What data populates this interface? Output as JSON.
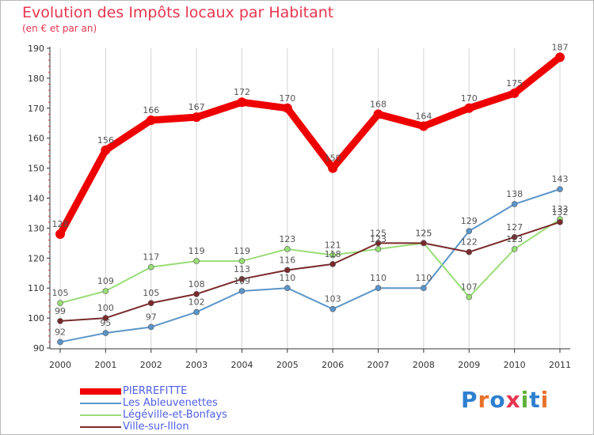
{
  "title": "Evolution des Impôts locaux par Habitant",
  "subtitle": "(en € et par an)",
  "logo": "Proxiti",
  "chart_data": {
    "type": "line",
    "x": [
      "2000",
      "2001",
      "2002",
      "2003",
      "2004",
      "2005",
      "2006",
      "2007",
      "2008",
      "2009",
      "2010",
      "2011"
    ],
    "ylim": [
      90,
      190
    ],
    "yticks": [
      90,
      100,
      110,
      120,
      130,
      140,
      150,
      160,
      170,
      180,
      190
    ],
    "grid": "vertical",
    "legend_position": "bottom-left",
    "series": [
      {
        "name": "PIERREFITTE",
        "color": "#ee0000",
        "values": [
          128,
          156,
          166,
          167,
          172,
          170,
          150,
          168,
          164,
          170,
          175,
          187
        ]
      },
      {
        "name": "Les Ableuvenettes",
        "color": "#5b95c9",
        "values": [
          92,
          95,
          97,
          102,
          109,
          110,
          103,
          110,
          110,
          129,
          138,
          143
        ]
      },
      {
        "name": "Légéville-et-Bonfays",
        "color": "#99dd77",
        "values": [
          105,
          109,
          117,
          119,
          119,
          123,
          121,
          123,
          125,
          107,
          123,
          133
        ]
      },
      {
        "name": "Ville-sur-Illon",
        "color": "#7a2a2a",
        "values": [
          99,
          100,
          105,
          108,
          113,
          116,
          118,
          125,
          125,
          122,
          127,
          132
        ]
      }
    ]
  }
}
